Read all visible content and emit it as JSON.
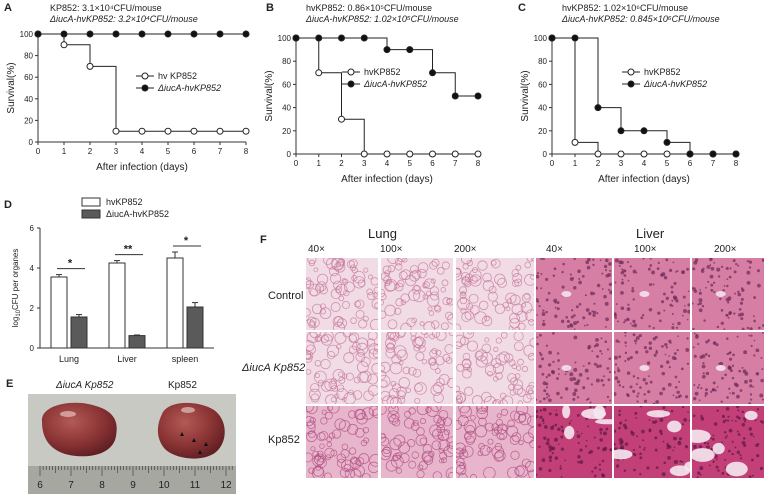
{
  "panels": {
    "A": {
      "letter": "A",
      "header1": "KP852: 3.1×10⁴CFU/mouse",
      "header2": "ΔiucA-hvKP852: 3.2×10⁴CFU/mouse",
      "xlabel": "After infection (days)",
      "ylabel": "Survival(%)",
      "legend": [
        "hv KP852",
        "ΔiucA-hvKP852"
      ]
    },
    "B": {
      "letter": "B",
      "header1": "hvKP852: 0.86×10⁵CFU/mouse",
      "header2": "ΔiucA-hvKP852: 1.02×10⁵CFU/mouse",
      "xlabel": "After infection (days)",
      "ylabel": "Survival(%)",
      "legend": [
        "hvKP852",
        "ΔiucA-hvKP852"
      ]
    },
    "C": {
      "letter": "C",
      "header1": "hvKP852: 1.02×10⁶CFU/mouse",
      "header2": "ΔiucA-hvKP852: 0.845×10⁶CFU/mouse",
      "xlabel": "After infection (days)",
      "ylabel": "Survival(%)",
      "legend": [
        "hvKP852",
        "ΔiucA-hvKP852"
      ]
    },
    "D": {
      "letter": "D",
      "ylabel": "log10CFU per organes",
      "legend": [
        "hvKP852",
        "ΔiucA-hvKP852"
      ],
      "significance": [
        "*",
        "**",
        "*"
      ]
    },
    "E": {
      "letter": "E",
      "label_left": "ΔiucA Kp852",
      "label_right": "Kp852",
      "ruler_numbers": [
        "6",
        "7",
        "8",
        "9",
        "10",
        "11",
        "12"
      ]
    },
    "F": {
      "letter": "F",
      "organs": [
        "Lung",
        "Liver"
      ],
      "magnifications": [
        "40×",
        "100×",
        "200×",
        "40×",
        "100×",
        "200×"
      ],
      "rows": [
        "Control",
        "ΔiucA Kp852",
        "Kp852"
      ]
    }
  },
  "chart_data": [
    {
      "panel": "A",
      "type": "line",
      "step": true,
      "x": [
        0,
        1,
        2,
        3,
        4,
        5,
        6,
        7,
        8
      ],
      "xlim": [
        0,
        8
      ],
      "ylim": [
        0,
        100
      ],
      "yticks": [
        0,
        20,
        40,
        60,
        80,
        100
      ],
      "series": [
        {
          "name": "hv KP852",
          "marker": "open",
          "x": [
            0,
            1,
            2,
            3,
            4,
            5,
            6,
            7,
            8
          ],
          "y": [
            100,
            90,
            70,
            10,
            10,
            10,
            10,
            10,
            10
          ]
        },
        {
          "name": "ΔiucA-hvKP852",
          "marker": "filled",
          "x": [
            0,
            1,
            2,
            3,
            4,
            5,
            6,
            7,
            8
          ],
          "y": [
            100,
            100,
            100,
            100,
            100,
            100,
            100,
            100,
            100
          ]
        }
      ]
    },
    {
      "panel": "B",
      "type": "line",
      "step": true,
      "x": [
        0,
        1,
        2,
        3,
        4,
        5,
        6,
        7,
        8
      ],
      "xlim": [
        0,
        8
      ],
      "ylim": [
        0,
        100
      ],
      "yticks": [
        0,
        20,
        40,
        60,
        80,
        100
      ],
      "series": [
        {
          "name": "hvKP852",
          "marker": "open",
          "x": [
            0,
            1,
            2,
            3,
            4,
            5,
            6,
            7,
            8
          ],
          "y": [
            100,
            70,
            30,
            0,
            0,
            0,
            0,
            0,
            0
          ]
        },
        {
          "name": "ΔiucA-hvKP852",
          "marker": "filled",
          "x": [
            0,
            1,
            2,
            3,
            4,
            5,
            6,
            7,
            8
          ],
          "y": [
            100,
            100,
            100,
            100,
            90,
            90,
            70,
            50,
            50
          ]
        }
      ]
    },
    {
      "panel": "C",
      "type": "line",
      "step": true,
      "x": [
        0,
        1,
        2,
        3,
        4,
        5,
        6,
        7,
        8
      ],
      "xlim": [
        0,
        8
      ],
      "ylim": [
        0,
        100
      ],
      "yticks": [
        0,
        20,
        40,
        60,
        80,
        100
      ],
      "series": [
        {
          "name": "hvKP852",
          "marker": "open",
          "x": [
            0,
            1,
            2,
            3,
            4,
            5,
            6,
            7,
            8
          ],
          "y": [
            100,
            10,
            0,
            0,
            0,
            0,
            0,
            0,
            0
          ]
        },
        {
          "name": "ΔiucA-hvKP852",
          "marker": "filled",
          "x": [
            0,
            1,
            2,
            3,
            4,
            5,
            6,
            7,
            8
          ],
          "y": [
            100,
            100,
            40,
            20,
            20,
            10,
            0,
            0,
            0
          ]
        }
      ]
    },
    {
      "panel": "D",
      "type": "bar",
      "categories": [
        "Lung",
        "Liver",
        "spleen"
      ],
      "ylim": [
        0,
        6
      ],
      "yticks": [
        0,
        2,
        4,
        6
      ],
      "series": [
        {
          "name": "hvKP852",
          "color": "#ffffff",
          "values": [
            3.55,
            4.25,
            4.5
          ],
          "errors": [
            0.12,
            0.12,
            0.3
          ]
        },
        {
          "name": "ΔiucA-hvKP852",
          "color": "#5a5a5a",
          "values": [
            1.55,
            0.62,
            2.05
          ],
          "errors": [
            0.12,
            0.03,
            0.22
          ]
        }
      ]
    }
  ]
}
